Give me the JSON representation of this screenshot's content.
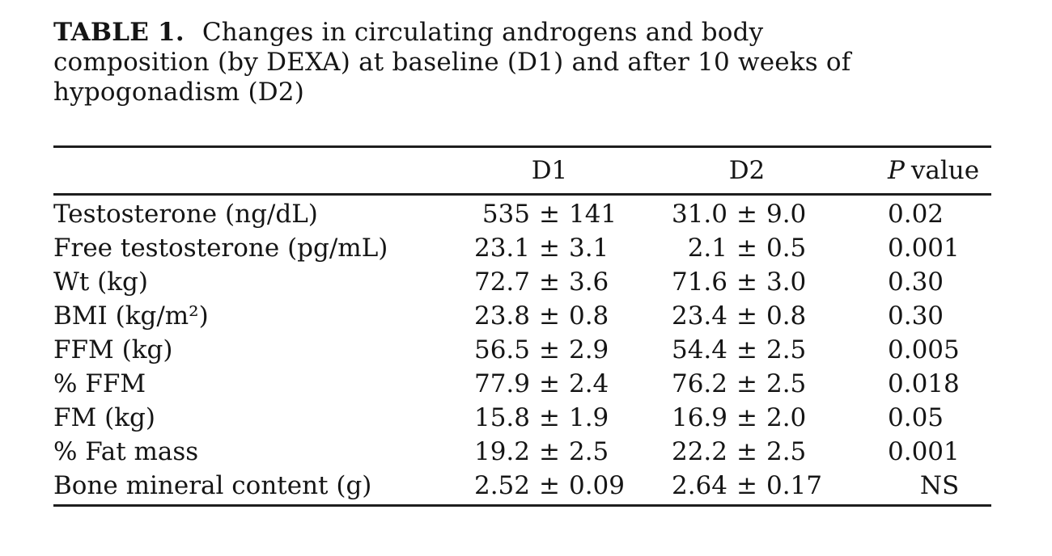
{
  "caption": {
    "label_bold": "TABLE 1.",
    "line1_rest": "Changes in circulating androgens and body",
    "line2": "composition (by DEXA) at baseline (D1) and after 10 weeks of",
    "line3": "hypogonadism (D2)"
  },
  "table": {
    "pm": "±",
    "columns": {
      "d1": "D1",
      "d2": "D2",
      "p_italic": "P",
      "p_rest": "value"
    },
    "rows": [
      {
        "label": "Testosterone (ng/dL)",
        "d1_mean": "535",
        "d1_sd": "141",
        "d2_mean": "31.0",
        "d2_sd": "9.0",
        "p": "0.02"
      },
      {
        "label": "Free testosterone (pg/mL)",
        "d1_mean": "23.1",
        "d1_sd": "3.1",
        "d2_mean": "2.1",
        "d2_sd": "0.5",
        "p": "0.001"
      },
      {
        "label": "Wt (kg)",
        "d1_mean": "72.7",
        "d1_sd": "3.6",
        "d2_mean": "71.6",
        "d2_sd": "3.0",
        "p": "0.30"
      },
      {
        "label": "BMI (kg/m²)",
        "d1_mean": "23.8",
        "d1_sd": "0.8",
        "d2_mean": "23.4",
        "d2_sd": "0.8",
        "p": "0.30"
      },
      {
        "label": "FFM (kg)",
        "d1_mean": "56.5",
        "d1_sd": "2.9",
        "d2_mean": "54.4",
        "d2_sd": "2.5",
        "p": "0.005"
      },
      {
        "label": "% FFM",
        "d1_mean": "77.9",
        "d1_sd": "2.4",
        "d2_mean": "76.2",
        "d2_sd": "2.5",
        "p": "0.018"
      },
      {
        "label": "FM (kg)",
        "d1_mean": "15.8",
        "d1_sd": "1.9",
        "d2_mean": "16.9",
        "d2_sd": "2.0",
        "p": "0.05"
      },
      {
        "label": "% Fat mass",
        "d1_mean": "19.2",
        "d1_sd": "2.5",
        "d2_mean": "22.2",
        "d2_sd": "2.5",
        "p": "0.001"
      },
      {
        "label": "Bone mineral content (g)",
        "d1_mean": "2.52",
        "d1_sd": "0.09",
        "d2_mean": "2.64",
        "d2_sd": "0.17",
        "p": "NS"
      }
    ]
  },
  "chart_data": {
    "type": "table",
    "title": "TABLE 1. Changes in circulating androgens and body composition (by DEXA) at baseline (D1) and after 10 weeks of hypogonadism (D2)",
    "columns": [
      "",
      "D1",
      "D2",
      "P value"
    ],
    "rows": [
      [
        "Testosterone (ng/dL)",
        "535 ± 141",
        "31.0 ± 9.0",
        "0.02"
      ],
      [
        "Free testosterone (pg/mL)",
        "23.1 ± 3.1",
        "2.1 ± 0.5",
        "0.001"
      ],
      [
        "Wt (kg)",
        "72.7 ± 3.6",
        "71.6 ± 3.0",
        "0.30"
      ],
      [
        "BMI (kg/m²)",
        "23.8 ± 0.8",
        "23.4 ± 0.8",
        "0.30"
      ],
      [
        "FFM (kg)",
        "56.5 ± 2.9",
        "54.4 ± 2.5",
        "0.005"
      ],
      [
        "% FFM",
        "77.9 ± 2.4",
        "76.2 ± 2.5",
        "0.018"
      ],
      [
        "FM (kg)",
        "15.8 ± 1.9",
        "16.9 ± 2.0",
        "0.05"
      ],
      [
        "% Fat mass",
        "19.2 ± 2.5",
        "22.2 ± 2.5",
        "0.001"
      ],
      [
        "Bone mineral content (g)",
        "2.52 ± 0.09",
        "2.64 ± 0.17",
        "NS"
      ]
    ]
  },
  "colors": {
    "background": "#ffffff",
    "text": "#151515",
    "rule": "#1e1e1e"
  }
}
